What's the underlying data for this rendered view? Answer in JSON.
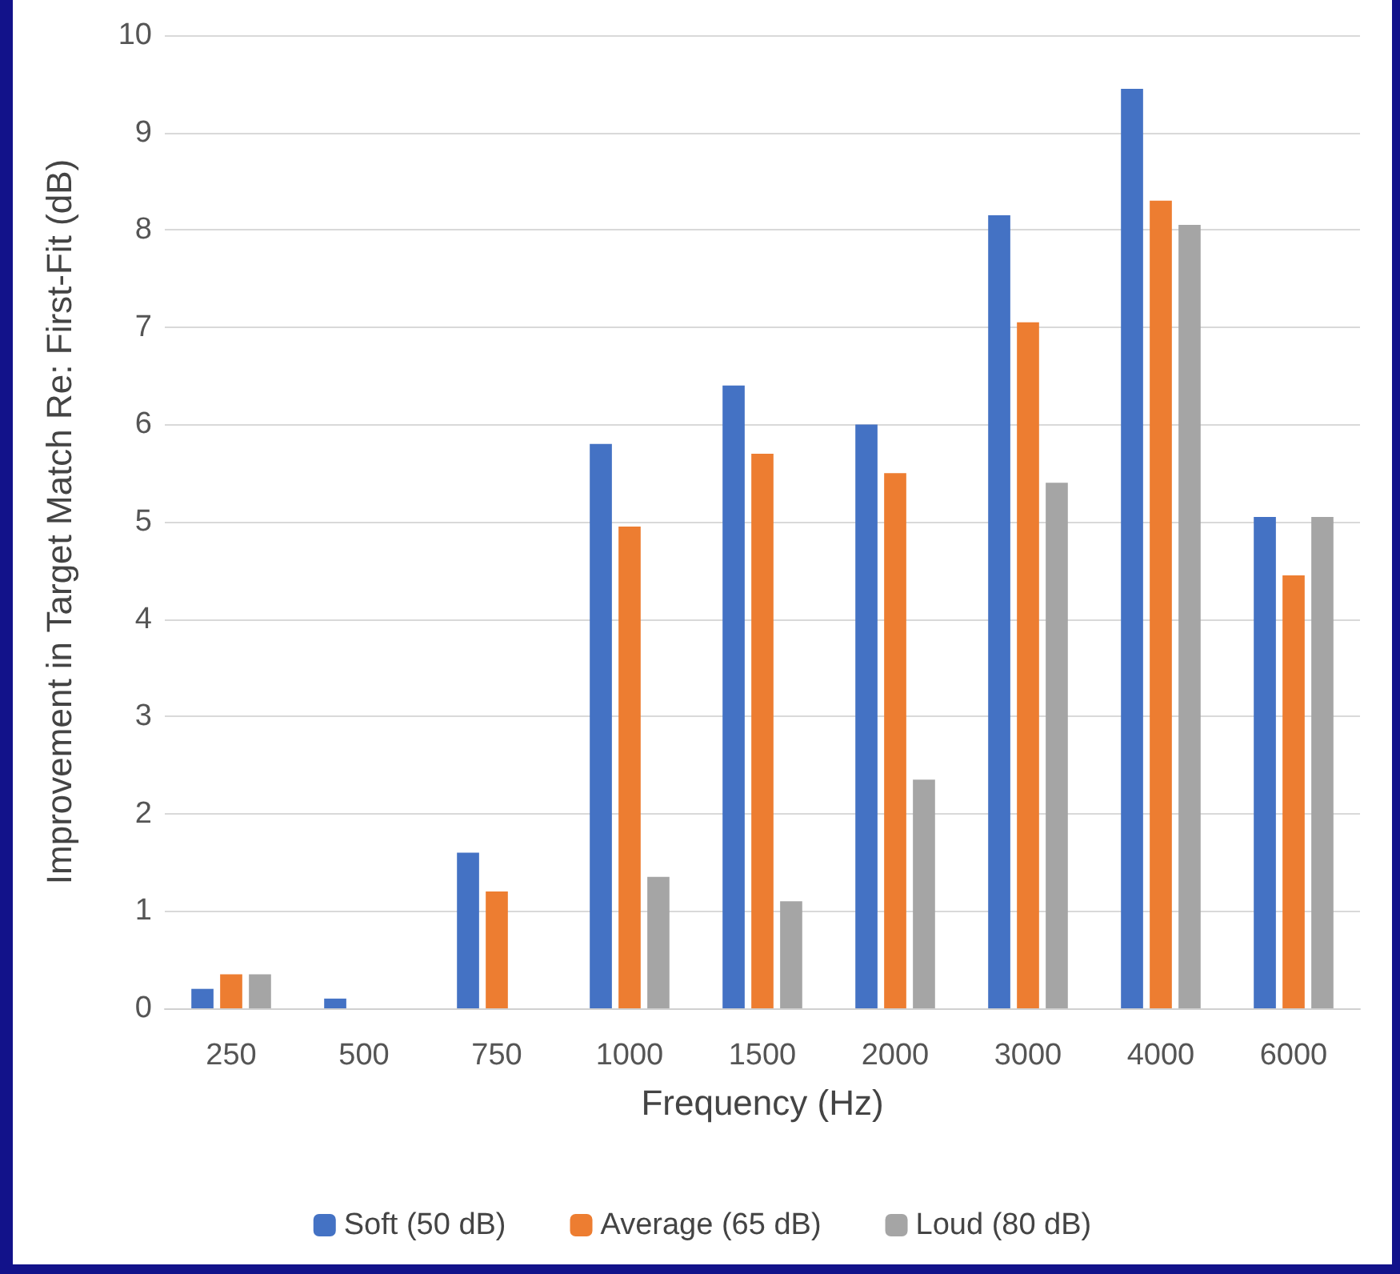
{
  "chart_data": {
    "type": "bar",
    "xlabel": "Frequency (Hz)",
    "ylabel": "Improvement in Target Match Re: First-Fit (dB)",
    "categories": [
      "250",
      "500",
      "750",
      "1000",
      "1500",
      "2000",
      "3000",
      "4000",
      "6000"
    ],
    "series": [
      {
        "name": "Soft (50 dB)",
        "color": "#4472c4",
        "values": [
          0.2,
          0.1,
          1.6,
          5.8,
          6.4,
          6.0,
          8.15,
          9.45,
          5.05
        ]
      },
      {
        "name": "Average (65 dB)",
        "color": "#ed7d31",
        "values": [
          0.35,
          0,
          1.2,
          4.95,
          5.7,
          5.5,
          7.05,
          8.3,
          4.45
        ]
      },
      {
        "name": "Loud (80 dB)",
        "color": "#a5a5a5",
        "values": [
          0.35,
          0,
          0,
          1.35,
          1.1,
          2.35,
          5.4,
          8.05,
          5.05
        ]
      }
    ],
    "ylim": [
      0,
      10
    ],
    "yticks": [
      0,
      1,
      2,
      3,
      4,
      5,
      6,
      7,
      8,
      9,
      10
    ],
    "grid": "y",
    "legend": "bottom"
  }
}
